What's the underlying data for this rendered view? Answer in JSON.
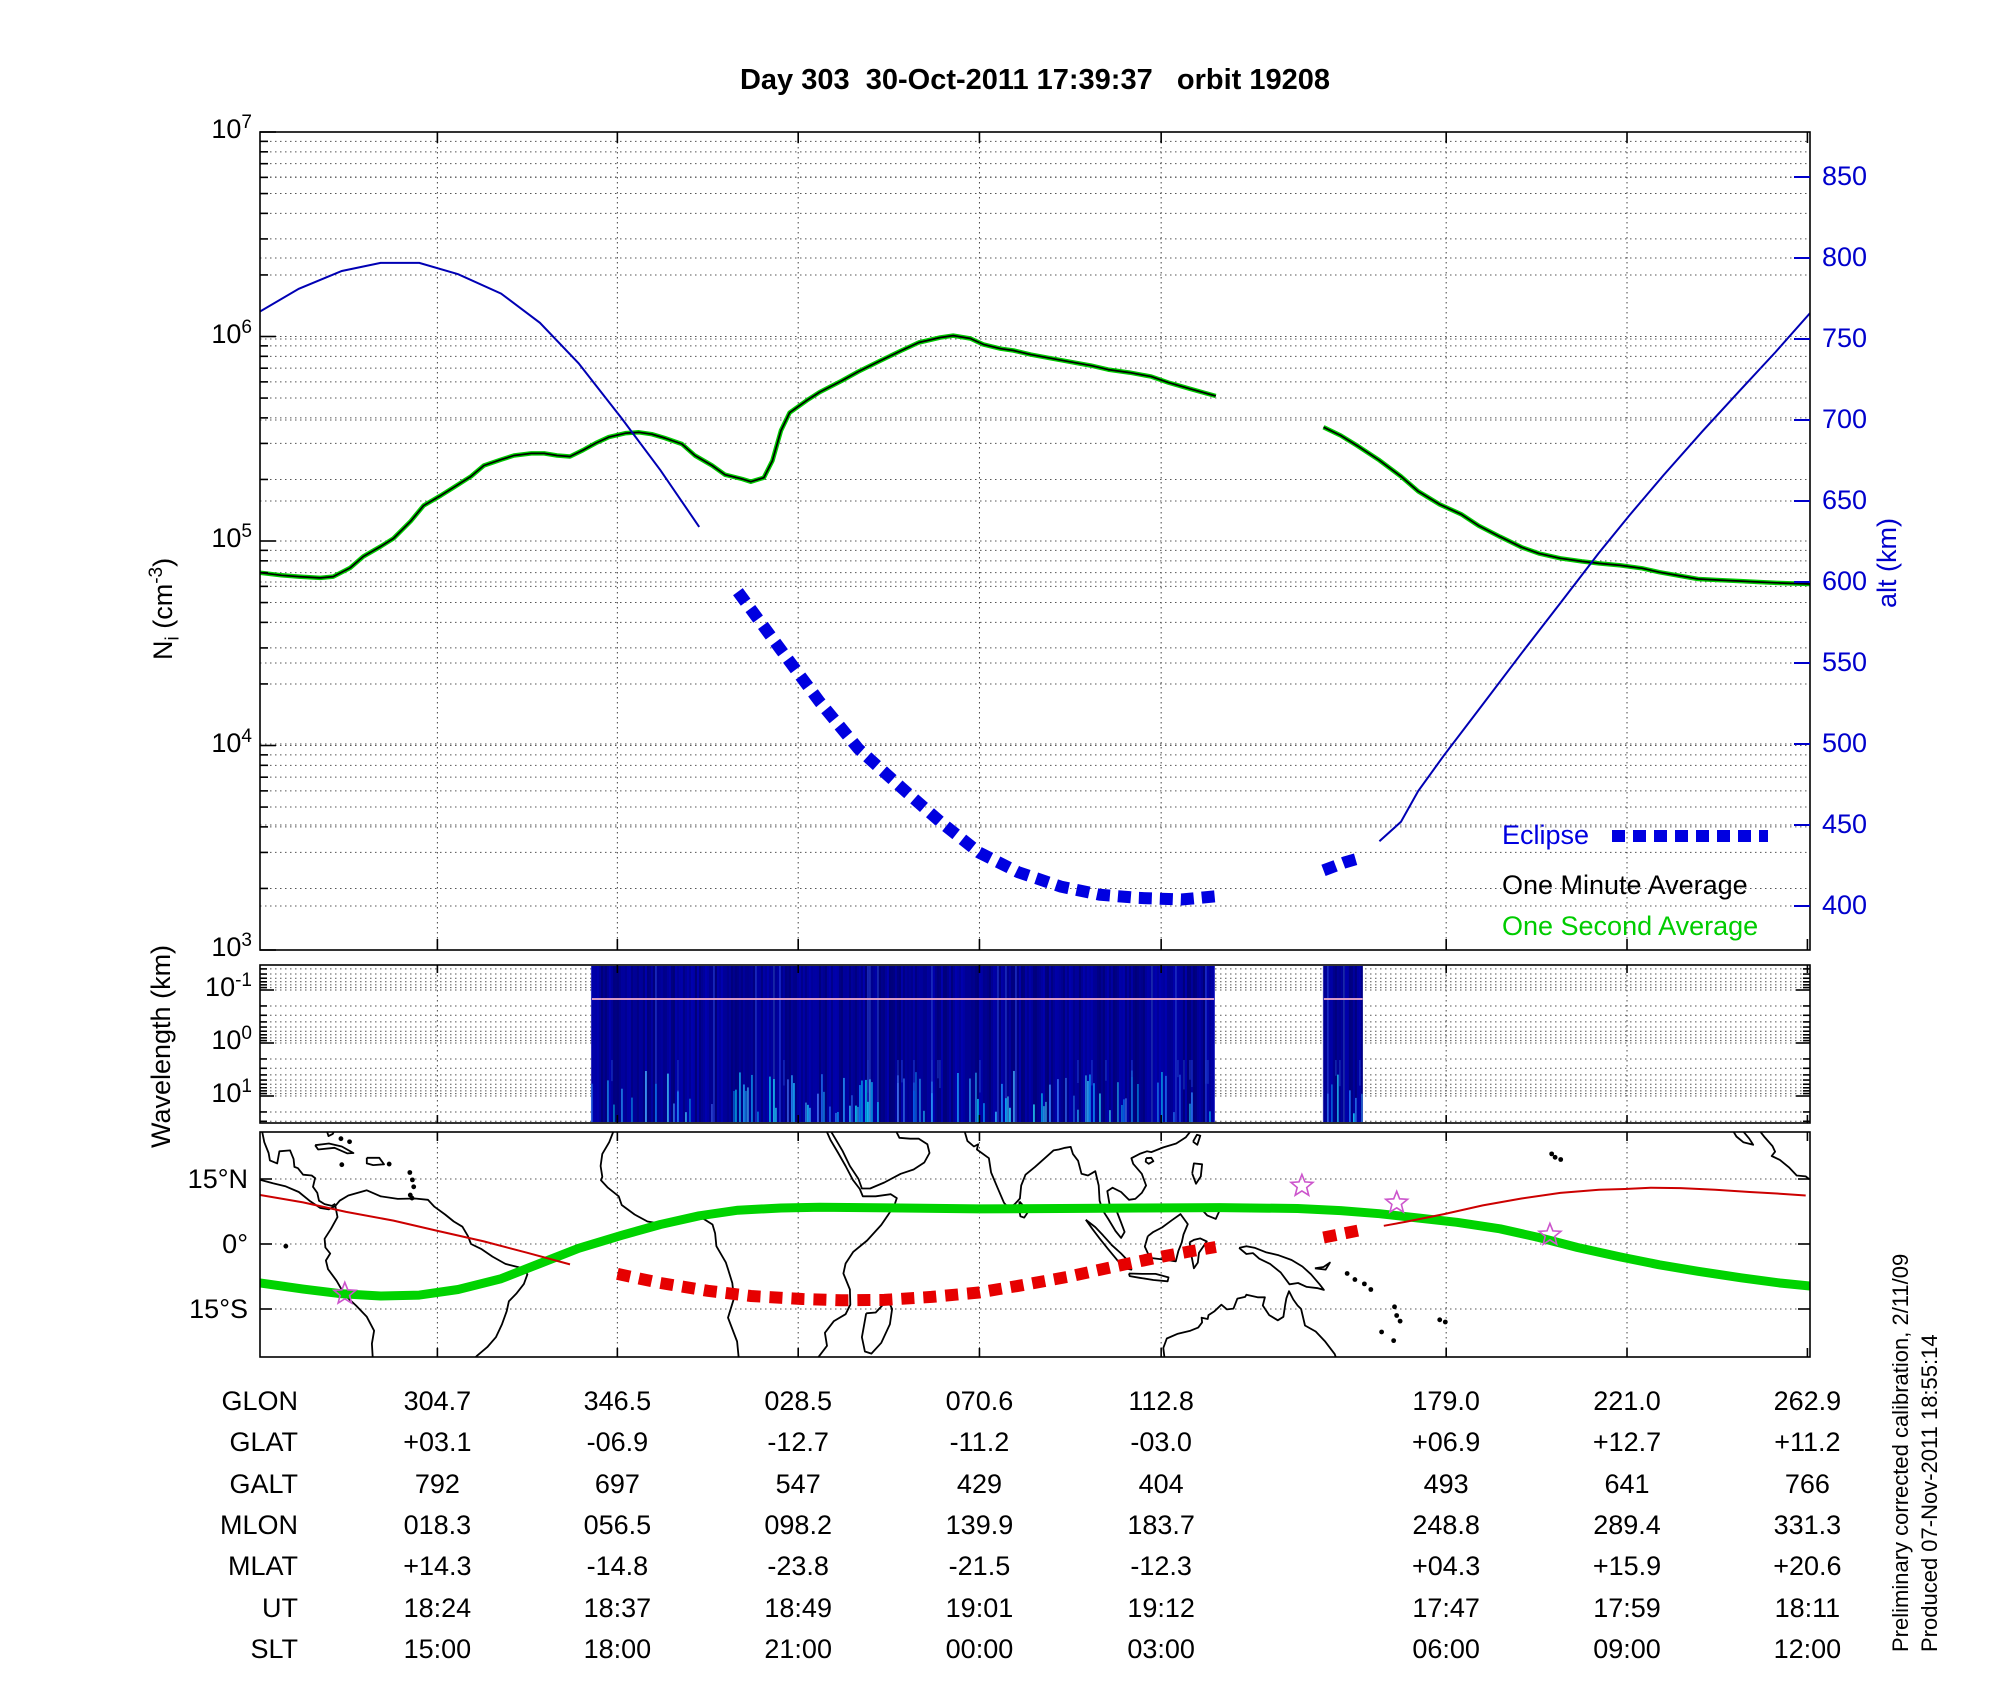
{
  "title": "Day 303  30-Oct-2011 17:39:37   orbit 19208",
  "colors": {
    "altitude_line": "#0000b4",
    "eclipse_blue": "#0000e0",
    "alt_axis_blue": "#0000cc",
    "one_minute_black": "#000000",
    "one_second_green": "#00cc00",
    "spectrogram_base": "#00007d",
    "track_red": "#cc0000",
    "eclipse_red": "#e60000",
    "mag_equator_green": "#00d300",
    "star_magenta": "#cc55cc"
  },
  "axes": {
    "density": {
      "label_parts": {
        "pre": "N",
        "sub": "i",
        "mid": " (cm",
        "sup": "-3",
        "post": ")"
      },
      "ticks": [
        {
          "base": "10",
          "exp": "7"
        },
        {
          "base": "10",
          "exp": "6"
        },
        {
          "base": "10",
          "exp": "5"
        },
        {
          "base": "10",
          "exp": "4"
        },
        {
          "base": "10",
          "exp": "3"
        }
      ]
    },
    "alt": {
      "label": "alt (km)",
      "ticks": [
        "850",
        "800",
        "750",
        "700",
        "650",
        "600",
        "550",
        "500",
        "450",
        "400"
      ]
    },
    "wavelength": {
      "label": "Wavelength (km)",
      "ticks": [
        {
          "base": "10",
          "exp": "-1"
        },
        {
          "base": "10",
          "exp": "0"
        },
        {
          "base": "10",
          "exp": "1"
        }
      ]
    },
    "map": {
      "lat_labels": [
        "15°N",
        "0°",
        "15°S"
      ]
    }
  },
  "legend": {
    "eclipse": "Eclipse",
    "one_minute": "One Minute Average",
    "one_second": "One Second Average"
  },
  "annotations": {
    "calibration": "Preliminary corrected calibration, 2/11/09",
    "produced": "Produced 07-Nov-2011 18:55:14"
  },
  "table": {
    "rows": [
      {
        "label": "GLON",
        "values": [
          "304.7",
          "346.5",
          "028.5",
          "070.6",
          "112.8",
          "179.0",
          "221.0",
          "262.9"
        ]
      },
      {
        "label": "GLAT",
        "values": [
          "+03.1",
          "-06.9",
          "-12.7",
          "-11.2",
          "-03.0",
          "+06.9",
          "+12.7",
          "+11.2"
        ]
      },
      {
        "label": "GALT",
        "values": [
          "792",
          "697",
          "547",
          "429",
          "404",
          "493",
          "641",
          "766"
        ]
      },
      {
        "label": "MLON",
        "values": [
          "018.3",
          "056.5",
          "098.2",
          "139.9",
          "183.7",
          "248.8",
          "289.4",
          "331.3"
        ]
      },
      {
        "label": "MLAT",
        "values": [
          "+14.3",
          "-14.8",
          "-23.8",
          "-21.5",
          "-12.3",
          "+04.3",
          "+15.9",
          "+20.6"
        ]
      },
      {
        "label": "UT",
        "values": [
          "18:24",
          "18:37",
          "18:49",
          "19:01",
          "19:12",
          "17:47",
          "17:59",
          "18:11"
        ]
      },
      {
        "label": "SLT",
        "values": [
          "15:00",
          "18:00",
          "21:00",
          "00:00",
          "03:00",
          "06:00",
          "09:00",
          "12:00"
        ]
      }
    ]
  },
  "chart_data": [
    {
      "type": "line",
      "panel": "density-altitude",
      "title": "Day 303  30-Oct-2011 17:39:37   orbit 19208",
      "x_axis": "geographic longitude, degrees east of plot left edge (263.5 deg E); 0-360 spans full width",
      "left_axis": {
        "label": "Ni (cm^-3)",
        "scale": "log",
        "range": [
          1000,
          10000000
        ]
      },
      "right_axis": {
        "label": "alt (km)",
        "range": [
          373,
          878
        ],
        "ticks": [
          850,
          800,
          750,
          700,
          650,
          600,
          550,
          500,
          450,
          400
        ]
      },
      "legend_position": "lower right",
      "grid": "dotted",
      "eclipse_intervals_x": [
        [
          110.8,
          221.6
        ],
        [
          247.1,
          256.1
        ]
      ],
      "data_gap_x": [
        221.6,
        247.1
      ],
      "series": [
        {
          "name": "ion_density_one_minute_average",
          "units": "cm^-3",
          "points": [
            [
              0,
              70000
            ],
            [
              5,
              68000
            ],
            [
              9,
              67000
            ],
            [
              14,
              66000
            ],
            [
              17,
              67000
            ],
            [
              21,
              74000
            ],
            [
              24,
              84000
            ],
            [
              28,
              94000
            ],
            [
              31,
              103000
            ],
            [
              35,
              125000
            ],
            [
              38,
              149000
            ],
            [
              42,
              167000
            ],
            [
              45,
              183000
            ],
            [
              49,
              207000
            ],
            [
              52,
              234000
            ],
            [
              56,
              250000
            ],
            [
              59,
              262000
            ],
            [
              63,
              268000
            ],
            [
              66,
              268000
            ],
            [
              69,
              262000
            ],
            [
              72,
              259000
            ],
            [
              75,
              278000
            ],
            [
              78,
              301000
            ],
            [
              81,
              322000
            ],
            [
              85,
              337000
            ],
            [
              88,
              340000
            ],
            [
              91,
              333000
            ],
            [
              94,
              319000
            ],
            [
              98,
              298000
            ],
            [
              101,
              262000
            ],
            [
              105,
              234000
            ],
            [
              108,
              211000
            ],
            [
              112,
              201000
            ],
            [
              114,
              195000
            ],
            [
              117,
              204000
            ],
            [
              119,
              247000
            ],
            [
              121,
              347000
            ],
            [
              123,
              424000
            ],
            [
              127,
              487000
            ],
            [
              130,
              535000
            ],
            [
              135,
              606000
            ],
            [
              139,
              674000
            ],
            [
              144,
              760000
            ],
            [
              149,
              854000
            ],
            [
              153,
              935000
            ],
            [
              158,
              989000
            ],
            [
              161,
              1010000
            ],
            [
              165,
              978000
            ],
            [
              168,
              915000
            ],
            [
              172,
              872000
            ],
            [
              175,
              854000
            ],
            [
              179,
              816000
            ],
            [
              184,
              780000
            ],
            [
              188,
              753000
            ],
            [
              193,
              721000
            ],
            [
              197,
              689000
            ],
            [
              202,
              666000
            ],
            [
              207,
              637000
            ],
            [
              211,
              595000
            ],
            [
              216,
              555000
            ],
            [
              222,
              512000
            ],
            null,
            [
              247,
              360000
            ],
            [
              251,
              328000
            ],
            [
              255,
              291000
            ],
            [
              260,
              248000
            ],
            [
              265,
              207000
            ],
            [
              269,
              175000
            ],
            [
              274,
              151000
            ],
            [
              279,
              135000
            ],
            [
              283,
              119000
            ],
            [
              288,
              105000
            ],
            [
              293,
              93300
            ],
            [
              297,
              87000
            ],
            [
              302,
              82300
            ],
            [
              307,
              79500
            ],
            [
              311,
              77700
            ],
            [
              316,
              76000
            ],
            [
              321,
              73500
            ],
            [
              325,
              70400
            ],
            [
              330,
              67400
            ],
            [
              334,
              65200
            ],
            [
              339,
              64400
            ],
            [
              344,
              63700
            ],
            [
              348,
              63000
            ],
            [
              353,
              62300
            ],
            [
              360,
              61600
            ]
          ]
        },
        {
          "name": "altitude",
          "units": "km",
          "points": [
            [
              0,
              767
            ],
            [
              9,
              781
            ],
            [
              19,
              792
            ],
            [
              28,
              797
            ],
            [
              37,
              797
            ],
            [
              46,
              790
            ],
            [
              56,
              778
            ],
            [
              65,
              760
            ],
            [
              74,
              735
            ],
            [
              84,
              701
            ],
            [
              93,
              669
            ],
            [
              102,
              634
            ],
            [
              111,
              594
            ],
            [
              121,
              558
            ],
            [
              130,
              526
            ],
            [
              139,
              497
            ],
            [
              149,
              473
            ],
            [
              158,
              452
            ],
            [
              167,
              433
            ],
            [
              176,
              421
            ],
            [
              186,
              412
            ],
            [
              195,
              407
            ],
            [
              204,
              405
            ],
            [
              214,
              404
            ],
            [
              222,
              406
            ],
            null,
            [
              247,
              422
            ],
            [
              252,
              427
            ],
            [
              256,
              430
            ],
            [
              260,
              440
            ],
            [
              265,
              452
            ],
            [
              269,
              471
            ],
            [
              275,
              493
            ],
            [
              283,
              521
            ],
            [
              293,
              556
            ],
            [
              302,
              587
            ],
            [
              311,
              618
            ],
            [
              318,
              641
            ],
            [
              326,
              666
            ],
            [
              335,
              693
            ],
            [
              344,
              719
            ],
            [
              352,
              742
            ],
            [
              360,
              766
            ]
          ]
        }
      ]
    },
    {
      "type": "heatmap",
      "panel": "wavelength-spectrogram",
      "y_axis": "Wavelength (km), log scale inverted, approx 0.035 to 32",
      "active_intervals_x": [
        [
          77.1,
          221.6
        ],
        [
          247.1,
          256.1
        ]
      ],
      "note": "dark blue spectrogram with vertical streaks, brighter cyan streaks near bottom, faint pink line near top"
    },
    {
      "type": "map",
      "panel": "ground-track",
      "lat_range": [
        -26.1,
        25.9
      ],
      "lon_left_edge_E": 263.5,
      "eclipse_intervals_x": [
        [
          77.1,
          221.6
        ],
        [
          247.1,
          256.1
        ]
      ],
      "series": [
        {
          "name": "ground_track_latitude",
          "color_role": "track_red",
          "points": [
            [
              0,
              11.3
            ],
            [
              10,
              9.6
            ],
            [
              20,
              7.4
            ],
            [
              31,
              5.4
            ],
            [
              41,
              3.1
            ],
            [
              52,
              0.6
            ],
            [
              62,
              -2.0
            ],
            [
              72,
              -4.7
            ],
            [
              83,
              -6.9
            ],
            [
              93,
              -9.0
            ],
            [
              104,
              -10.8
            ],
            [
              114,
              -12.0
            ],
            [
              126,
              -12.7
            ],
            [
              135,
              -13.0
            ],
            [
              145,
              -12.9
            ],
            [
              156,
              -12.2
            ],
            [
              167,
              -11.2
            ],
            [
              177,
              -9.5
            ],
            [
              188,
              -7.5
            ],
            [
              198,
              -5.3
            ],
            [
              209,
              -3.0
            ],
            [
              216,
              -1.7
            ],
            [
              222,
              -0.7
            ],
            null,
            [
              247,
              1.5
            ],
            [
              252,
              2.5
            ],
            [
              256,
              3.3
            ],
            [
              261,
              4.2
            ],
            [
              266,
              5.1
            ],
            [
              275,
              6.9
            ],
            [
              284,
              8.9
            ],
            [
              293,
              10.5
            ],
            [
              302,
              11.8
            ],
            [
              311,
              12.5
            ],
            [
              317,
              12.7
            ],
            [
              323,
              13.0
            ],
            [
              330,
              12.9
            ],
            [
              338,
              12.5
            ],
            [
              346,
              12.0
            ],
            [
              353,
              11.6
            ],
            [
              359,
              11.2
            ]
          ]
        },
        {
          "name": "magnetic_equator",
          "color_role": "mag_equator_green",
          "points": [
            [
              0,
              -9.0
            ],
            [
              10,
              -10.4
            ],
            [
              19,
              -11.5
            ],
            [
              28,
              -12.0
            ],
            [
              37,
              -11.8
            ],
            [
              46,
              -10.5
            ],
            [
              56,
              -8.0
            ],
            [
              65,
              -4.5
            ],
            [
              74,
              -1.0
            ],
            [
              84,
              2.0
            ],
            [
              93,
              4.5
            ],
            [
              102,
              6.5
            ],
            [
              111,
              7.8
            ],
            [
              121,
              8.3
            ],
            [
              130,
              8.5
            ],
            [
              149,
              8.3
            ],
            [
              167,
              8.1
            ],
            [
              186,
              8.2
            ],
            [
              204,
              8.3
            ],
            [
              223,
              8.4
            ],
            [
              241,
              8.2
            ],
            [
              251,
              7.7
            ],
            [
              260,
              7.0
            ],
            [
              269,
              6.0
            ],
            [
              278,
              5.0
            ],
            [
              288,
              3.5
            ],
            [
              297,
              1.5
            ],
            [
              306,
              -0.8
            ],
            [
              316,
              -3.0
            ],
            [
              325,
              -4.8
            ],
            [
              334,
              -6.3
            ],
            [
              344,
              -7.8
            ],
            [
              353,
              -9.0
            ],
            [
              360,
              -9.7
            ]
          ]
        }
      ],
      "stars": [
        [
          19.7,
          -11.5
        ],
        [
          242.0,
          13.4
        ],
        [
          264.0,
          9.5
        ],
        [
          299.6,
          2.1
        ]
      ]
    }
  ]
}
